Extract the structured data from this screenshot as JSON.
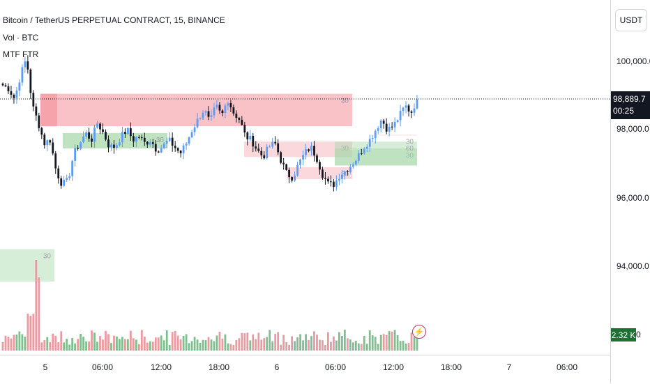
{
  "header": {
    "symbol_title": "Bitcoin / TetherUS PERPETUAL CONTRACT, 15, BINANCE",
    "indicator_1": "Vol · BTC",
    "indicator_2": "MTF FTR"
  },
  "price_axis": {
    "currency": "USDT",
    "ticks": [
      "100,000.0",
      "98,000.0",
      "96,000.0",
      "94,000.0"
    ],
    "last_price": "98,889.7",
    "countdown": "00:25",
    "volume_value": "2.32 K",
    "volume_tail": "0"
  },
  "time_axis": {
    "ticks": [
      {
        "label": "5",
        "day": true
      },
      {
        "label": "06:00",
        "day": false
      },
      {
        "label": "12:00",
        "day": false
      },
      {
        "label": "18:00",
        "day": false
      },
      {
        "label": "6",
        "day": true
      },
      {
        "label": "06:00",
        "day": false
      },
      {
        "label": "12:00",
        "day": false
      },
      {
        "label": "18:00",
        "day": false
      },
      {
        "label": "7",
        "day": true
      },
      {
        "label": "06:00",
        "day": false
      }
    ]
  },
  "zones": [
    {
      "kind": "supply",
      "tf": "15",
      "p_top": 99050,
      "p_bot": 98100
    },
    {
      "kind": "supply",
      "tf": "30",
      "p_top": 99050,
      "p_bot": 98100
    },
    {
      "kind": "demand",
      "tf": "15",
      "p_top": 97900,
      "p_bot": 97450
    },
    {
      "kind": "demand",
      "tf": "30",
      "p_top": 97900,
      "p_bot": 97450
    },
    {
      "kind": "supply",
      "tf": "30",
      "p_top": 97650,
      "p_bot": 97200
    },
    {
      "kind": "supply",
      "tf": "30",
      "p_top": 96900,
      "p_bot": 96550
    },
    {
      "kind": "demand",
      "tf": "30",
      "p_top": 97450,
      "p_bot": 96950
    },
    {
      "kind": "demand",
      "tf": "60",
      "p_top": 97650,
      "p_bot": 96950
    },
    {
      "kind": "supply",
      "tf": "30",
      "p_top": 97850,
      "p_bot": 97850
    },
    {
      "kind": "demand",
      "tf": "30",
      "p_top": 94500,
      "p_bot": 93550
    }
  ],
  "series": {
    "last_price_value": 98889.7,
    "close_path": [
      99300,
      99200,
      98900,
      99600,
      100100,
      98700,
      98200,
      97600,
      97700,
      96800,
      96400,
      96500,
      97300,
      97600,
      97900,
      97700,
      98200,
      97900,
      97500,
      97500,
      97800,
      98000,
      97700,
      97800,
      97600,
      97700,
      97400,
      97500,
      97700,
      97500,
      97300,
      97600,
      98000,
      98300,
      98600,
      98200,
      98700,
      98400,
      98900,
      98500,
      98300,
      97800,
      97700,
      97400,
      97200,
      97500,
      97600,
      97100,
      96700,
      96600,
      97000,
      97300,
      97500,
      97200,
      96700,
      96400,
      96400,
      96700,
      96800,
      97000,
      97200,
      97500,
      97700,
      98000,
      98300,
      98000,
      98100,
      98400,
      98700,
      98500,
      98900
    ]
  },
  "colors": {
    "up": "#5b9cf6",
    "down": "#131722",
    "vol_up": "#7fbf8f",
    "vol_down": "#ea9aa0",
    "supply": "#f7a9b0",
    "demand": "#a5d6a7",
    "accent": "#131722"
  }
}
